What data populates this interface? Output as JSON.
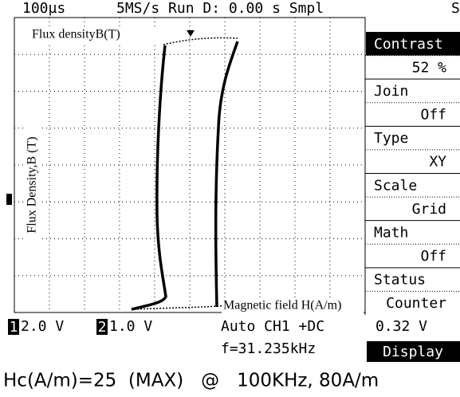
{
  "top_bar": {
    "timebase": "100µs",
    "status": "5MS/s Run D: 0.00 s Smpl",
    "mode": "S"
  },
  "plot": {
    "y_label_top": "Flux densityB(T)",
    "y_label_side": "Flux Density,B (T)",
    "x_label": "Magnetic field H(A/m)"
  },
  "menu": {
    "items": [
      "Contrast",
      "52 %",
      "Join",
      "Off",
      "Type",
      "XY",
      "Scale",
      "Grid",
      "Math",
      "Off",
      "Status",
      "Counter"
    ],
    "reading": "0.32 V",
    "display": "Display"
  },
  "bottom": {
    "ch1_label": "1",
    "ch1_scale": "2.0 V",
    "ch2_label": "2",
    "ch2_scale": "1.0 V",
    "trigger": "Auto CH1 +DC",
    "frequency": "f=31.235kHz"
  },
  "caption": "Hc(A/m)=25  (MAX)   @   100KHz, 80A/m"
}
